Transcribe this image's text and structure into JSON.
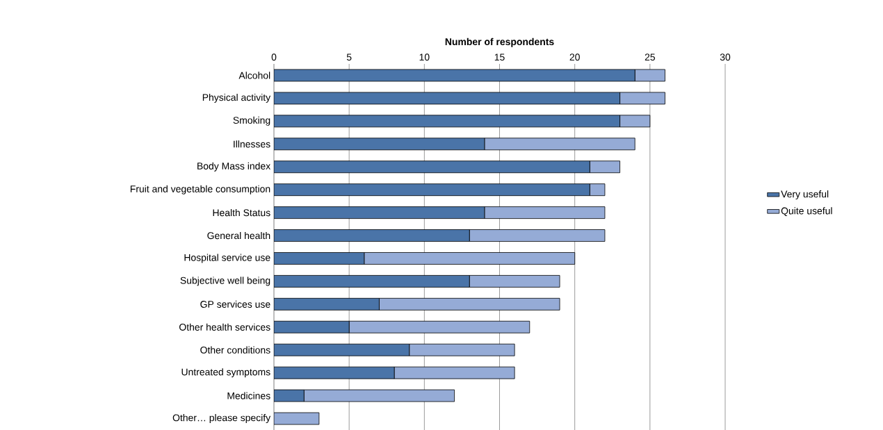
{
  "chart_data": {
    "type": "bar",
    "orientation": "horizontal",
    "stacked": true,
    "xlabel": "Number of respondents",
    "categories": [
      "Alcohol",
      "Physical activity",
      "Smoking",
      "Illnesses",
      "Body Mass index",
      "Fruit and vegetable consumption",
      "Health Status",
      "General health",
      "Hospital service use",
      "Subjective well being",
      "GP services use",
      "Other health services",
      "Other conditions",
      "Untreated symptoms",
      "Medicines",
      "Other… please specify"
    ],
    "series": [
      {
        "name": "Very useful",
        "color": "#4a74a8",
        "values": [
          24,
          23,
          23,
          14,
          21,
          21,
          14,
          13,
          6,
          13,
          7,
          5,
          9,
          8,
          2,
          0
        ]
      },
      {
        "name": "Quite useful",
        "color": "#95abd6",
        "values": [
          2,
          3,
          2,
          10,
          2,
          1,
          8,
          9,
          14,
          6,
          12,
          12,
          7,
          8,
          10,
          3
        ]
      }
    ],
    "xlim": [
      0,
      30
    ],
    "xticks": [
      0,
      5,
      10,
      15,
      20,
      25,
      30
    ],
    "grid": "x",
    "legend": "right"
  }
}
